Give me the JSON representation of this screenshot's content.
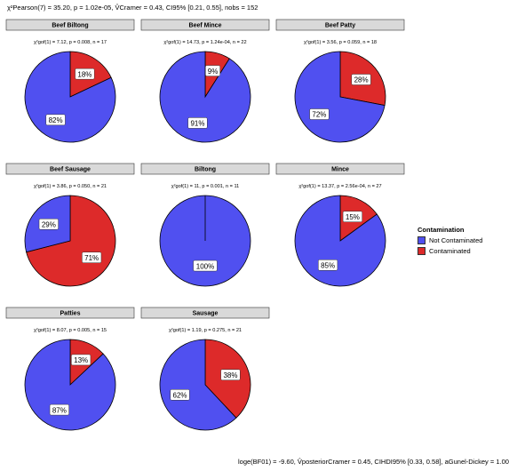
{
  "header": {
    "stats_text": "χ²Pearson(7) = 35.20, p = 1.02e-05, V̂Cramer = 0.43, CI95% [0.21, 0.55], nobs = 152"
  },
  "footer": {
    "stats_text": "loge(BF01) = -9.60, V̂posteriorCramer = 0.45, CIHDI95% [0.33, 0.58], aGunel-Dickey = 1.00"
  },
  "legend": {
    "title": "Contamination",
    "items": [
      {
        "label": "Not Contaminated",
        "color": "#5050F0"
      },
      {
        "label": "Contaminated",
        "color": "#DD2A2A"
      }
    ]
  },
  "chart_data": {
    "type": "pie",
    "colors": {
      "Not Contaminated": "#5050F0",
      "Contaminated": "#DD2A2A"
    },
    "facets": [
      {
        "name": "Beef Biltong",
        "subtitle": "χ²gof(1) = 7.12, p = 0.008, n = 17",
        "contaminated_pct": 18,
        "not_contaminated_pct": 82
      },
      {
        "name": "Beef Mince",
        "subtitle": "χ²gof(1) = 14.73, p = 1.24e-04, n = 22",
        "contaminated_pct": 9,
        "not_contaminated_pct": 91
      },
      {
        "name": "Beef Patty",
        "subtitle": "χ²gof(1) = 3.56, p = 0.059, n = 18",
        "contaminated_pct": 28,
        "not_contaminated_pct": 72
      },
      {
        "name": "Beef Sausage",
        "subtitle": "χ²gof(1) = 3.86, p = 0.050, n = 21",
        "contaminated_pct": 71,
        "not_contaminated_pct": 29
      },
      {
        "name": "Biltong",
        "subtitle": "χ²gof(1) = 11, p = 0.001, n = 11",
        "contaminated_pct": 0,
        "not_contaminated_pct": 100
      },
      {
        "name": "Mince",
        "subtitle": "χ²gof(1) = 13.37, p = 2.56e-04, n = 27",
        "contaminated_pct": 15,
        "not_contaminated_pct": 85
      },
      {
        "name": "Patties",
        "subtitle": "χ²gof(1) = 8.07, p = 0.005, n = 15",
        "contaminated_pct": 13,
        "not_contaminated_pct": 87
      },
      {
        "name": "Sausage",
        "subtitle": "χ²gof(1) = 1.19, p = 0.275, n = 21",
        "contaminated_pct": 38,
        "not_contaminated_pct": 62
      }
    ]
  }
}
